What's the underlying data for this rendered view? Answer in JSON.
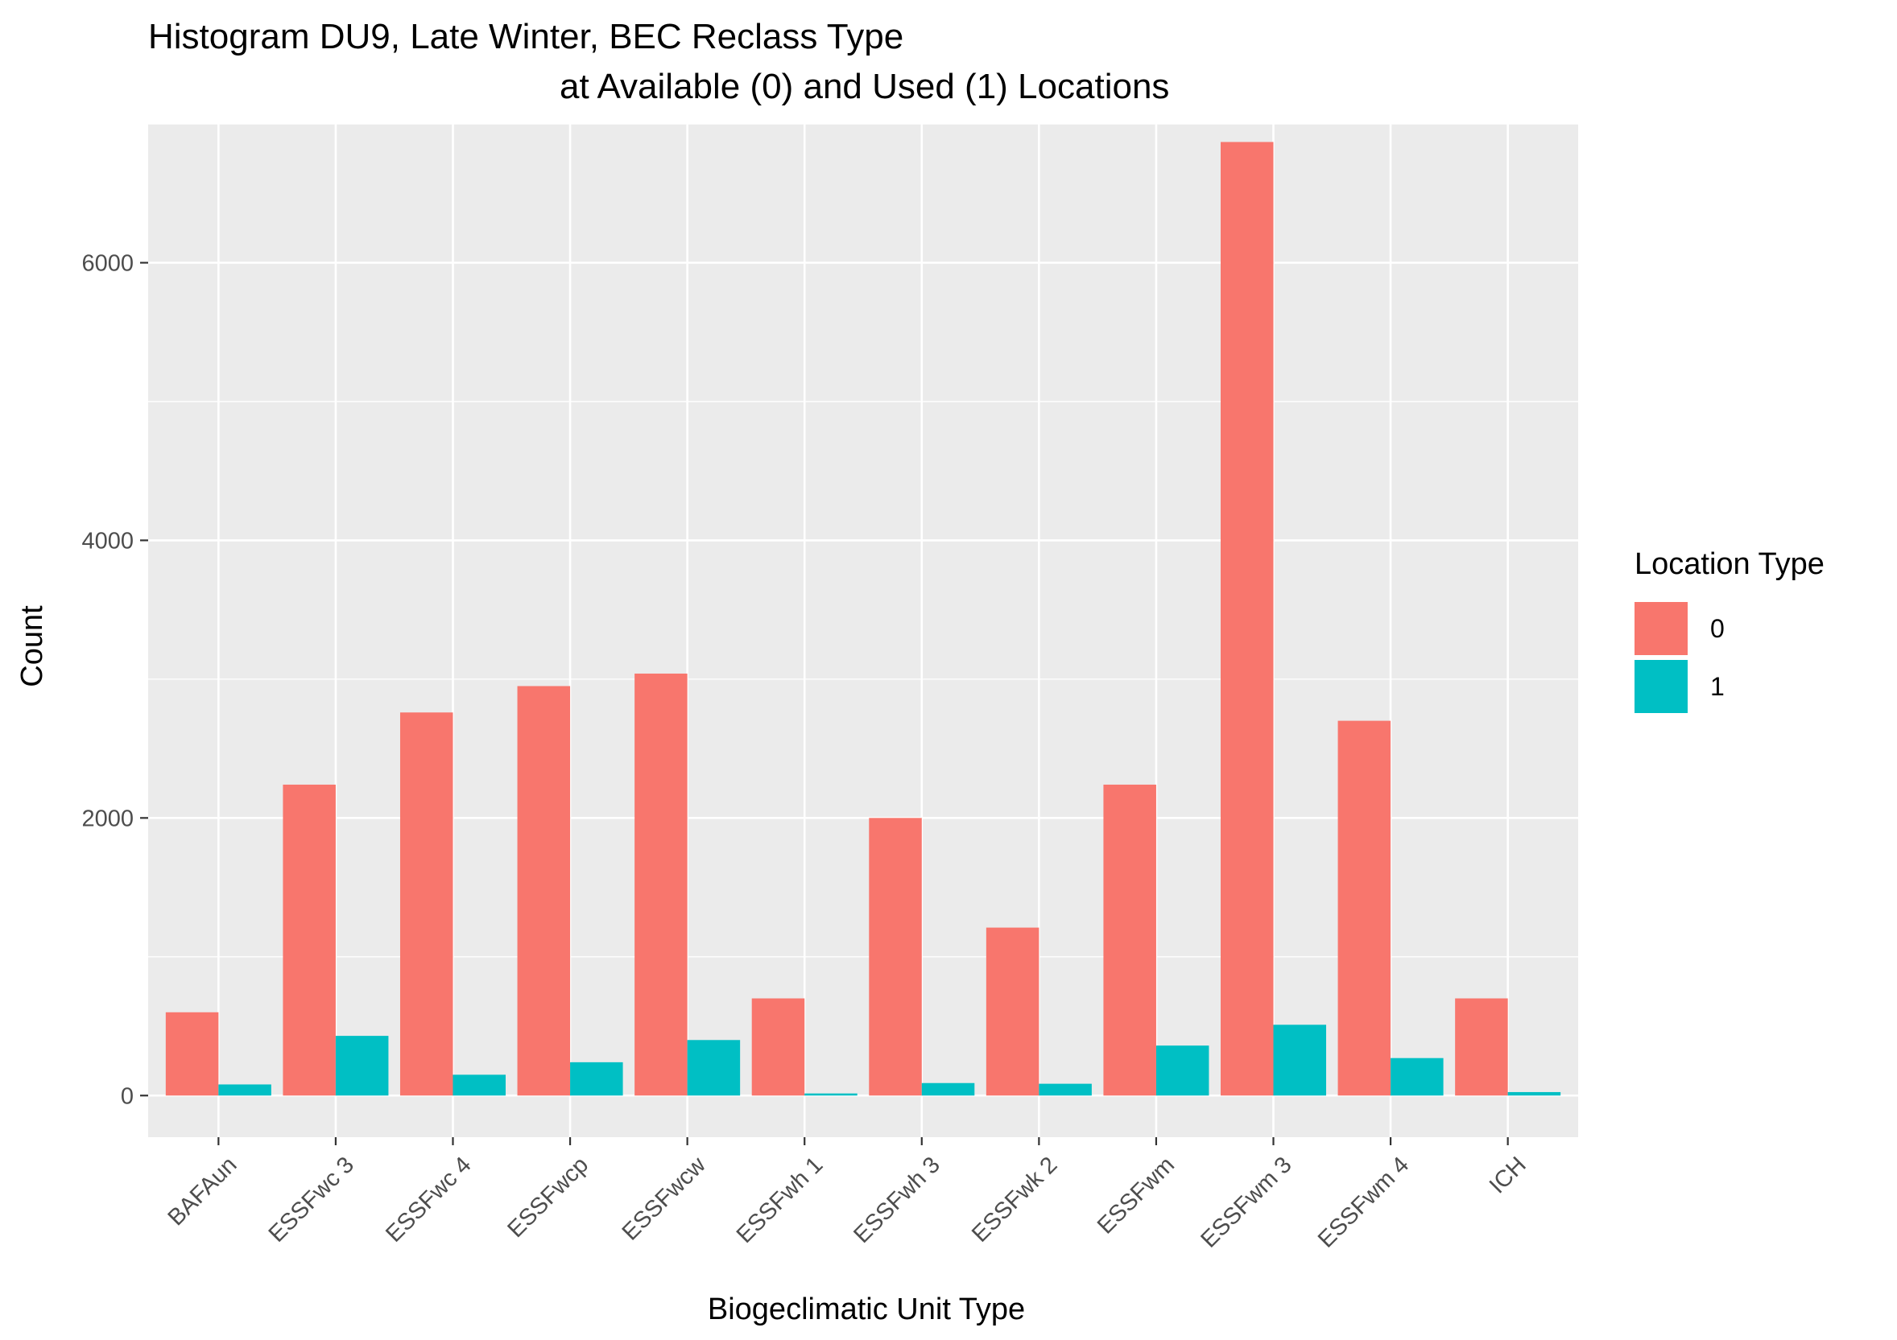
{
  "chart_data": {
    "type": "bar",
    "title": "Histogram DU9, Late Winter, BEC Reclass Type",
    "subtitle": "at Available (0) and Used (1) Locations",
    "xlabel": "Biogeclimatic Unit Type",
    "ylabel": "Count",
    "ylim": [
      -300,
      7000
    ],
    "yticks": [
      0,
      2000,
      4000,
      6000
    ],
    "grid": true,
    "legend_placement": "right",
    "legend_title": "Location Type",
    "categories": [
      "BAFAun",
      "ESSFwc 3",
      "ESSFwc 4",
      "ESSFwcp",
      "ESSFwcw",
      "ESSFwh 1",
      "ESSFwh 3",
      "ESSFwk 2",
      "ESSFwm",
      "ESSFwm 3",
      "ESSFwm 4",
      "ICH"
    ],
    "series": [
      {
        "name": "0",
        "color": "#F8766D",
        "values": [
          600,
          2240,
          2760,
          2950,
          3040,
          700,
          2000,
          1210,
          2240,
          6870,
          2700,
          700
        ]
      },
      {
        "name": "1",
        "color": "#00BFC4",
        "values": [
          80,
          430,
          150,
          240,
          400,
          15,
          90,
          85,
          360,
          510,
          270,
          25
        ]
      }
    ]
  }
}
